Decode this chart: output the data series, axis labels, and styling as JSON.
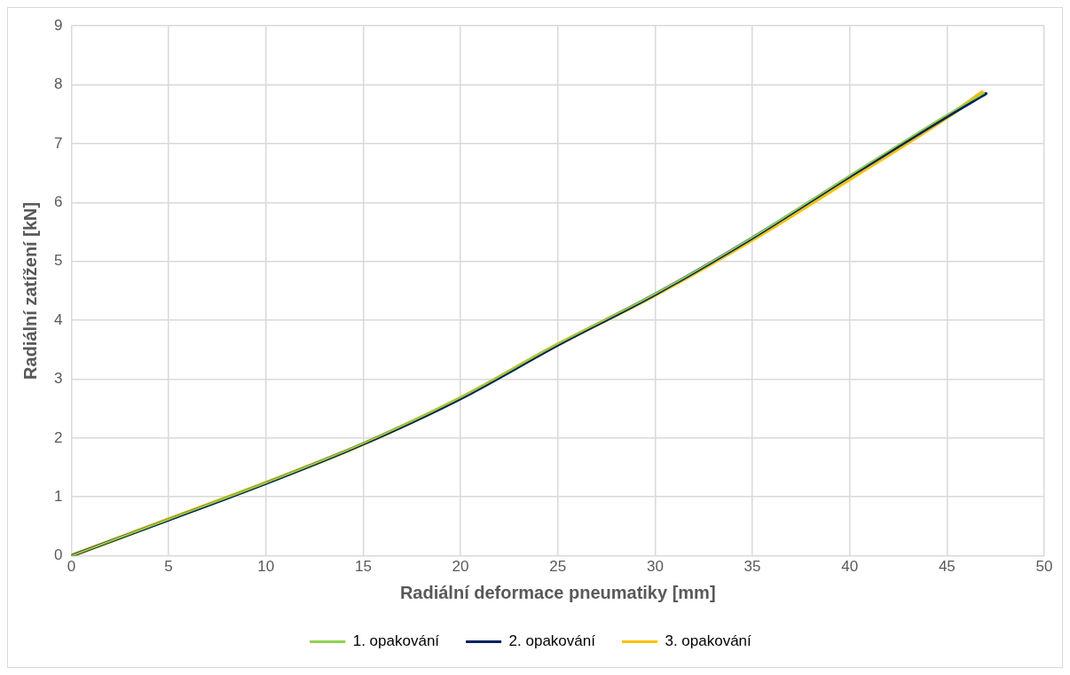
{
  "chart_data": {
    "type": "line",
    "xlabel": "Radiální deformace pneumatiky [mm]",
    "ylabel": "Radiální zatížení [kN]",
    "xlim": [
      0,
      50
    ],
    "xticks": [
      0,
      5,
      10,
      15,
      20,
      25,
      30,
      35,
      40,
      45,
      50
    ],
    "ylim": [
      0,
      9
    ],
    "yticks": [
      0,
      1,
      2,
      3,
      4,
      5,
      6,
      7,
      8,
      9
    ],
    "grid": true,
    "legend": "bottom",
    "marker": "none",
    "line_style": "solid",
    "series": [
      {
        "name": "1. opakování",
        "color": "#92d050",
        "x": [
          0,
          5,
          10,
          15,
          20,
          25,
          30,
          35,
          40,
          45,
          46.9
        ],
        "values": [
          0,
          0.62,
          1.24,
          1.91,
          2.69,
          3.6,
          4.45,
          5.41,
          6.46,
          7.49,
          7.86
        ]
      },
      {
        "name": "2. opakování",
        "color": "#002060",
        "x": [
          0,
          5,
          10,
          15,
          20,
          25,
          30,
          35,
          40,
          45,
          47
        ],
        "values": [
          0,
          0.61,
          1.23,
          1.9,
          2.67,
          3.58,
          4.44,
          5.4,
          6.44,
          7.46,
          7.85
        ]
      },
      {
        "name": "3. opakování",
        "color": "#ffc000",
        "x": [
          0,
          5,
          10,
          15,
          20,
          25,
          30,
          35,
          40,
          45,
          46.8
        ],
        "values": [
          0,
          0.62,
          1.24,
          1.9,
          2.68,
          3.59,
          4.43,
          5.37,
          6.4,
          7.45,
          7.87
        ]
      }
    ]
  }
}
